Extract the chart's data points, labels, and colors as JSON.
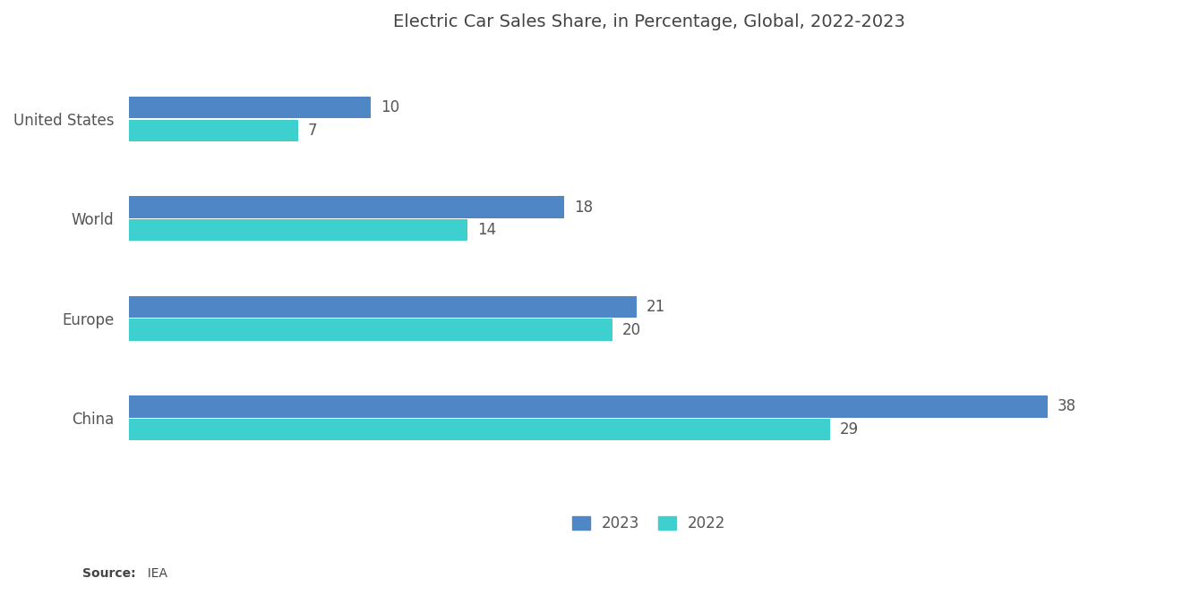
{
  "title": "Electric Car Sales Share, in Percentage, Global, 2022-2023",
  "categories": [
    "United States",
    "World",
    "Europe",
    "China"
  ],
  "values_2023": [
    10,
    18,
    21,
    38
  ],
  "values_2022": [
    7,
    14,
    20,
    29
  ],
  "color_2023": "#4F86C6",
  "color_2022": "#3ECFCF",
  "background_color": "#ffffff",
  "title_fontsize": 14,
  "label_fontsize": 12,
  "bar_label_fontsize": 12,
  "source_text_bold": "Source:",
  "source_text_normal": "  IEA",
  "legend_labels": [
    "2023",
    "2022"
  ],
  "xlim": [
    0,
    43
  ]
}
